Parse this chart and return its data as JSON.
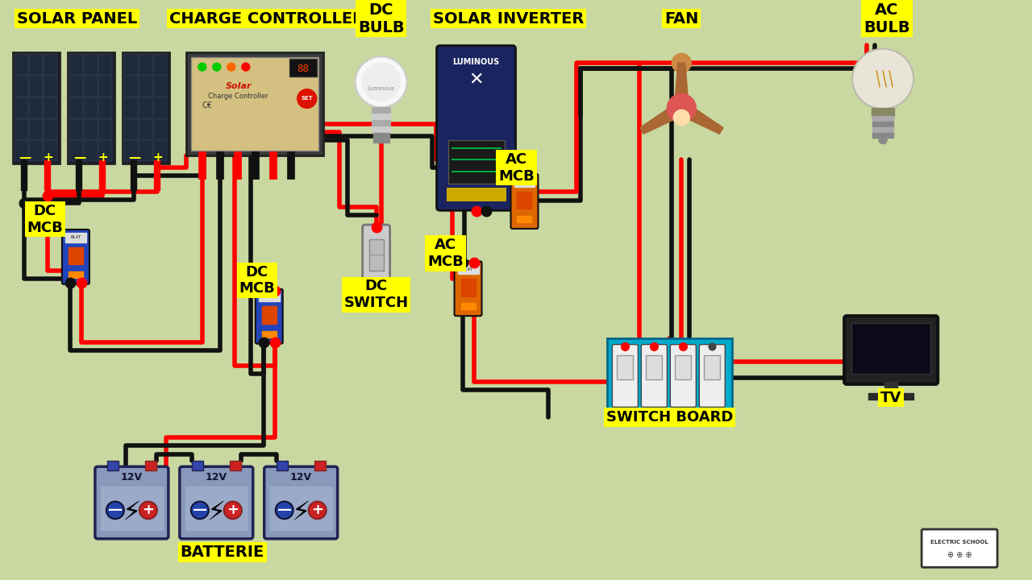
{
  "bg_color": "#c8d8a0",
  "wire_red": "#ff0000",
  "wire_black": "#111111",
  "label_bg": "#ffff00",
  "lw": 4.0,
  "solar_panel_label": "SOLAR PANEL",
  "charge_controller_label": "CHARGE CONTROLLER",
  "dc_bulb_label": "DC\nBULB",
  "solar_inverter_label": "SOLAR INVERTER",
  "fan_label": "FAN",
  "ac_bulb_label": "AC\nBULB",
  "dc_mcb_left_label": "DC\nMCB",
  "dc_mcb_right_label": "DC\nMCB",
  "dc_switch_label": "DC\nSWITCH",
  "ac_mcb_top_label": "AC\nMCB",
  "ac_mcb_bottom_label": "AC\nMCB",
  "switch_board_label": "SWITCH BOARD",
  "tv_label": "TV",
  "batterie_label": "BATTERIE",
  "electric_school_label": "ELECTRIC SCHOOL"
}
